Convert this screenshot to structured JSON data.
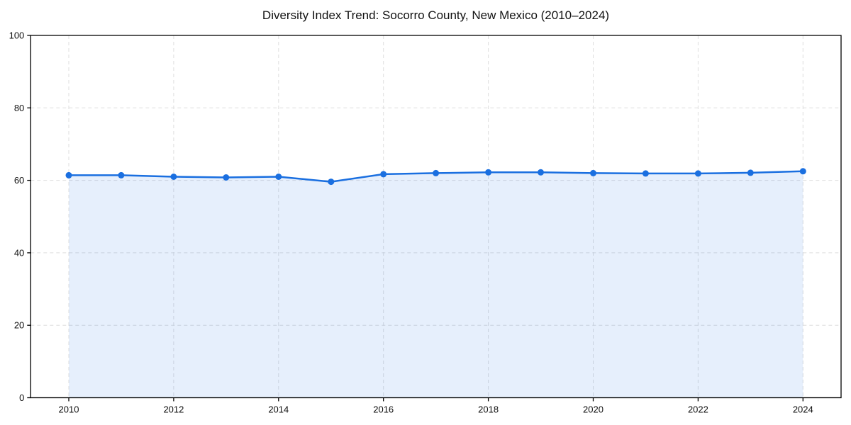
{
  "chart_data": {
    "type": "line",
    "title": "Diversity Index Trend: Socorro County, New Mexico (2010–2024)",
    "x": [
      2010,
      2011,
      2012,
      2013,
      2014,
      2015,
      2016,
      2017,
      2018,
      2019,
      2020,
      2021,
      2022,
      2023,
      2024
    ],
    "series": [
      {
        "name": "Diversity Index",
        "values": [
          61.4,
          61.4,
          61.0,
          60.8,
          61.0,
          59.6,
          61.7,
          62.0,
          62.2,
          62.2,
          62.0,
          61.9,
          61.9,
          62.1,
          62.5
        ]
      }
    ],
    "xlabel": "",
    "ylabel": "",
    "ylim": [
      0,
      100
    ],
    "yticks": [
      0,
      20,
      40,
      60,
      80,
      100
    ],
    "xticks": [
      2010,
      2012,
      2014,
      2016,
      2018,
      2020,
      2022,
      2024
    ],
    "grid": true,
    "grid_style": "dashed",
    "legend": "none",
    "marker": "circle",
    "colors": {
      "line": "#1a6fe0",
      "marker": "#1a6fe0",
      "area_fill": "#1a6fe0",
      "area_fill_opacity": 0.11,
      "gridline": "#dedede",
      "spine": "#000000",
      "tick_text": "#111111",
      "background": "#ffffff"
    }
  }
}
